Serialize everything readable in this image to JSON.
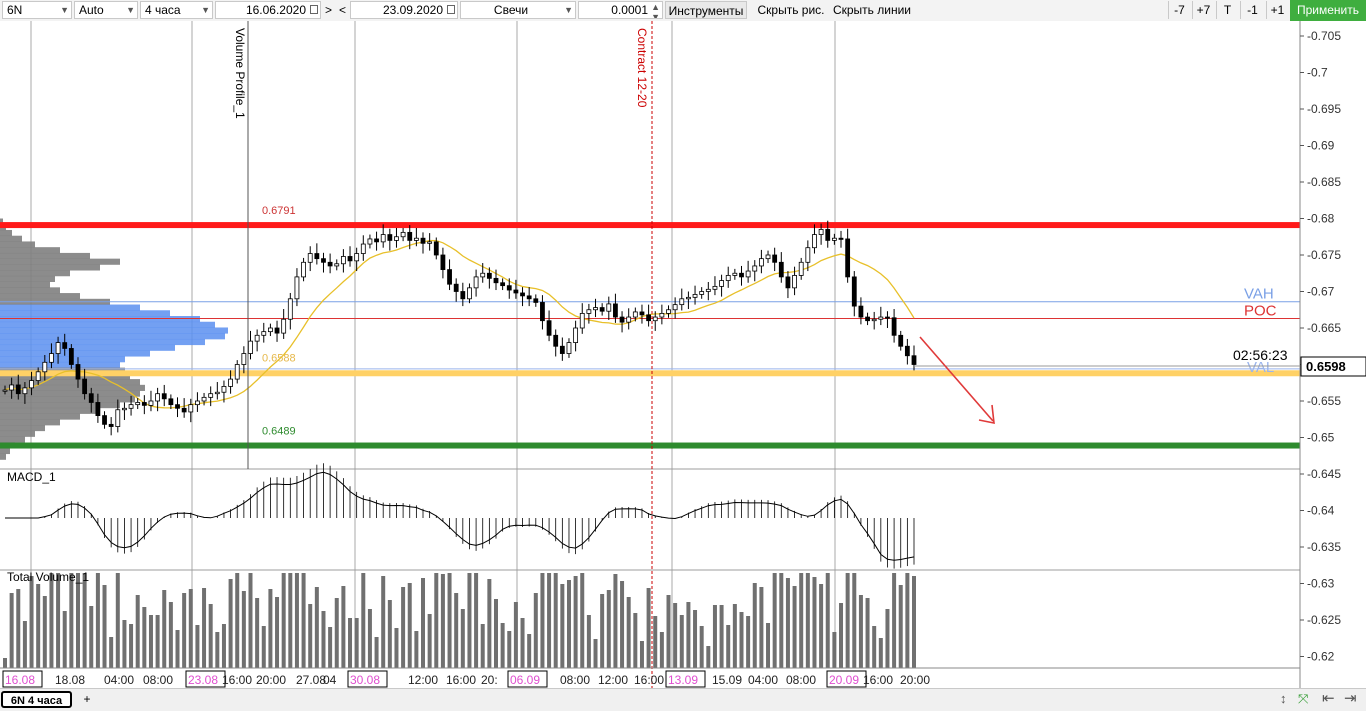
{
  "toolbar": {
    "symbol": "6N",
    "scale": "Auto",
    "timeframe": "4 часа",
    "date_from": "16.06.2020",
    "nav_next": ">",
    "nav_prev": "<",
    "date_to": "23.09.2020",
    "chart_style": "Свечи",
    "tick_size": "0.0001",
    "tools_label": "Инструменты",
    "hide_drawings": "Скрыть рис.",
    "hide_lines": "Скрыть линии",
    "minus7": "-7",
    "plus7": "+7",
    "t_button": "T",
    "minus1": "-1",
    "plus1": "+1",
    "apply": "Применить"
  },
  "status_bar": {
    "tab_label": "6N 4 часа",
    "add_tab": "+"
  },
  "chart_data": {
    "type": "candlestick",
    "symbol": "6N",
    "price_axis_ticks": [
      "0.705",
      "0.7",
      "0.695",
      "0.69",
      "0.685",
      "0.68",
      "0.675",
      "0.67",
      "0.665",
      "0.66",
      "0.655",
      "0.65",
      "0.645",
      "0.64",
      "0.635",
      "0.63",
      "0.625",
      "0.62"
    ],
    "time_axis_labels": [
      "16.08",
      "18.08",
      "04:00",
      "08:00",
      "23.08",
      "16:00",
      "20:00",
      "27.08",
      "04",
      "30.08",
      "12:00",
      "16:00",
      "20:",
      "06.09",
      "08:00",
      "12:00",
      "16:00",
      "13.09",
      "15.09",
      "04:00",
      "08:00",
      "20.09",
      "16:00",
      "20:00"
    ],
    "highlighted_dates": [
      "16.08",
      "23.08",
      "30.08",
      "06.09",
      "13.09",
      "20.09"
    ],
    "vertical_markers": [
      {
        "label": "Volume Profile_1",
        "style": "solid",
        "color": "#555555"
      },
      {
        "label": "Contract 12-20",
        "style": "dashed",
        "color": "#cc0000"
      }
    ],
    "levels": [
      {
        "label": "0.6791",
        "price": 0.6791,
        "color": "#ff1a1a",
        "thick": true
      },
      {
        "label": "0.6588",
        "price": 0.6588,
        "color": "#ffd166",
        "thick": true
      },
      {
        "label": "0.6489",
        "price": 0.6489,
        "color": "#2e8b2e",
        "thick": true
      },
      {
        "label": "VAH",
        "price": 0.6686,
        "color": "#7aa0e6"
      },
      {
        "label": "POC",
        "price": 0.6663,
        "color": "#dd3333"
      },
      {
        "label": "VAL",
        "price": 0.6594,
        "color": "#9ab4ec"
      }
    ],
    "current_price": "0.6598",
    "countdown": "02:56:23",
    "closes": [
      0.6565,
      0.6572,
      0.656,
      0.6568,
      0.6578,
      0.659,
      0.6603,
      0.6615,
      0.663,
      0.6622,
      0.66,
      0.658,
      0.656,
      0.6548,
      0.653,
      0.6518,
      0.6515,
      0.6538,
      0.654,
      0.6545,
      0.6548,
      0.6544,
      0.655,
      0.656,
      0.6553,
      0.6545,
      0.654,
      0.6535,
      0.6545,
      0.655,
      0.6555,
      0.656,
      0.6562,
      0.657,
      0.658,
      0.66,
      0.6615,
      0.6632,
      0.664,
      0.6645,
      0.665,
      0.6643,
      0.6662,
      0.669,
      0.672,
      0.674,
      0.6752,
      0.6745,
      0.674,
      0.6735,
      0.6738,
      0.6748,
      0.6742,
      0.6752,
      0.6765,
      0.6772,
      0.6768,
      0.6778,
      0.677,
      0.6775,
      0.6781,
      0.677,
      0.6773,
      0.6766,
      0.6768,
      0.675,
      0.673,
      0.671,
      0.67,
      0.669,
      0.6705,
      0.672,
      0.6725,
      0.6718,
      0.6712,
      0.6708,
      0.6702,
      0.6698,
      0.6694,
      0.669,
      0.6685,
      0.666,
      0.664,
      0.6625,
      0.6615,
      0.663,
      0.665,
      0.667,
      0.6675,
      0.6678,
      0.6673,
      0.6683,
      0.6665,
      0.6658,
      0.6665,
      0.6672,
      0.6668,
      0.666,
      0.6665,
      0.667,
      0.6675,
      0.6682,
      0.669,
      0.6692,
      0.6696,
      0.67,
      0.6703,
      0.6707,
      0.6715,
      0.6722,
      0.6725,
      0.672,
      0.6728,
      0.6735,
      0.6745,
      0.675,
      0.674,
      0.672,
      0.6705,
      0.6722,
      0.674,
      0.676,
      0.6778,
      0.6785,
      0.677,
      0.6773,
      0.6772,
      0.672,
      0.668,
      0.6665,
      0.666,
      0.6662,
      0.6665,
      0.6664,
      0.664,
      0.6625,
      0.6612,
      0.66
    ],
    "volume_profile": [
      3,
      6,
      12,
      22,
      35,
      60,
      90,
      120,
      100,
      70,
      55,
      50,
      60,
      80,
      110,
      140,
      170,
      200,
      215,
      228,
      225,
      205,
      175,
      150,
      125,
      120,
      125,
      130,
      140,
      145,
      140,
      135,
      120,
      100,
      80,
      60,
      45,
      35,
      25,
      15,
      10,
      6
    ],
    "indicators": [
      {
        "name": "MACD_1"
      },
      {
        "name": "Total Volume_1"
      }
    ]
  }
}
